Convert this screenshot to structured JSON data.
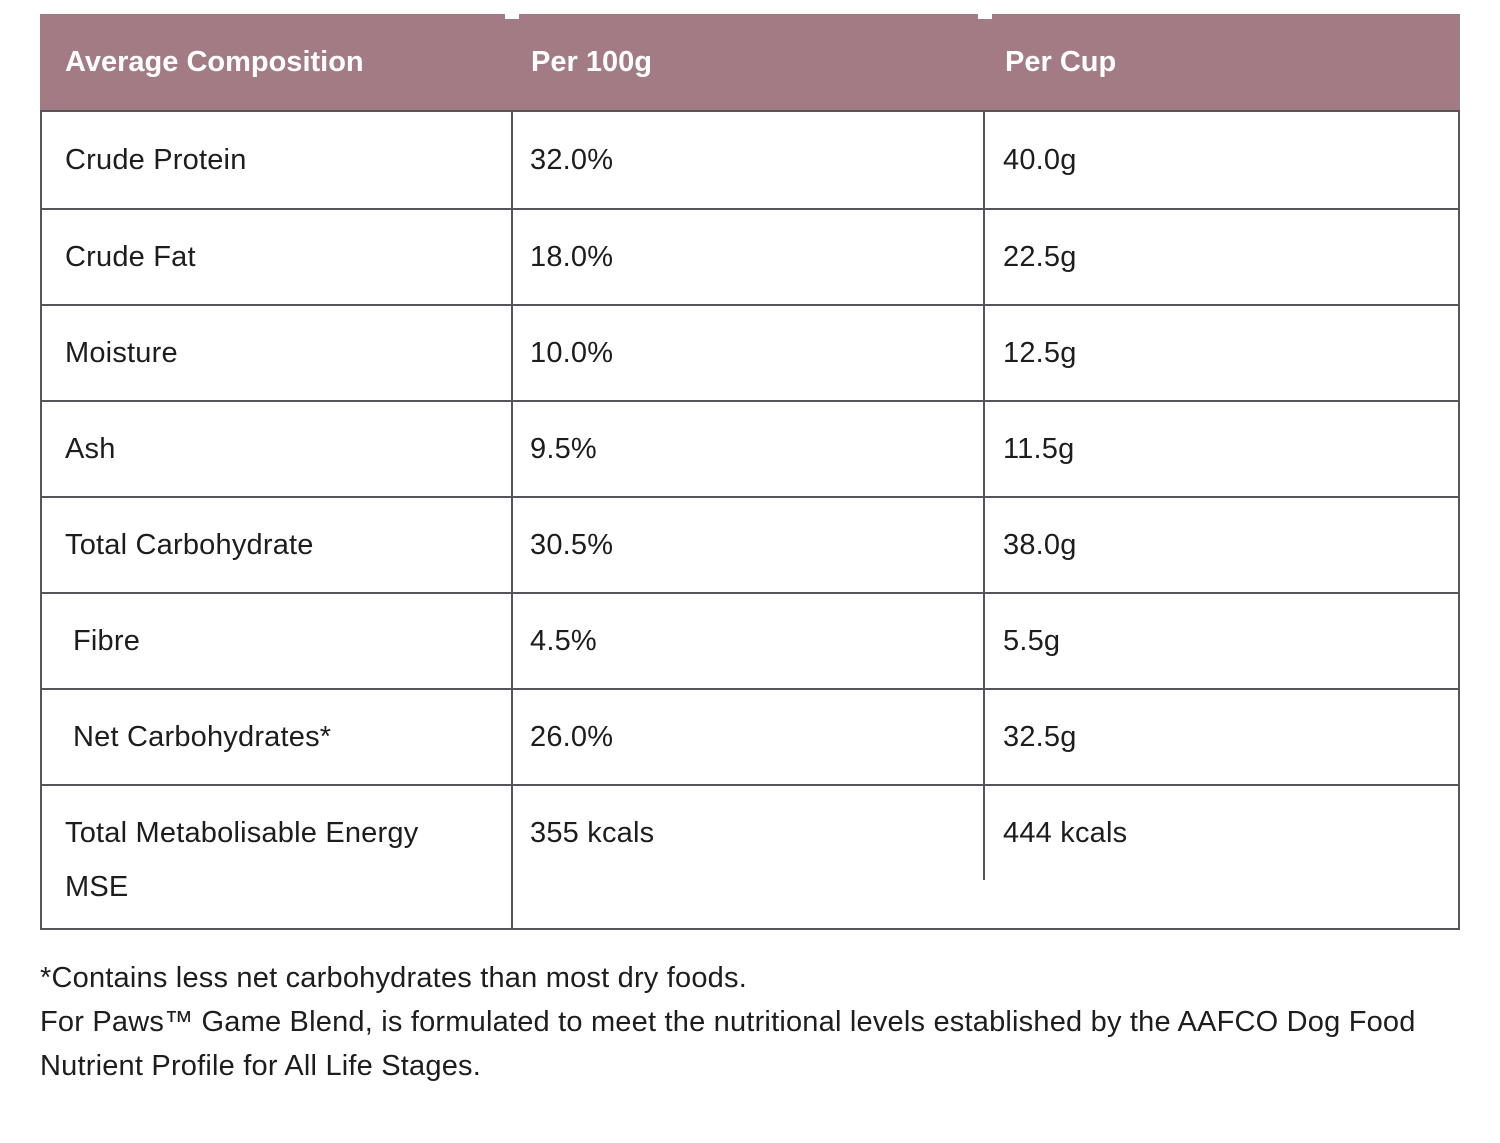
{
  "colors": {
    "background": "#ffffff",
    "header_bg": "#a37b84",
    "header_text": "#ffffff",
    "grid_border": "#55565a",
    "body_text": "#1d1d1d"
  },
  "table": {
    "header": {
      "columns": [
        "Average Composition",
        "Per 100g",
        "Per Cup"
      ]
    },
    "rows": [
      {
        "label": "Crude Protein",
        "per_100g": "32.0%",
        "per_cup": "40.0g"
      },
      {
        "label": "Crude Fat",
        "per_100g": "18.0%",
        "per_cup": "22.5g"
      },
      {
        "label": "Moisture",
        "per_100g": "10.0%",
        "per_cup": "12.5g"
      },
      {
        "label": "Ash",
        "per_100g": "9.5%",
        "per_cup": "11.5g"
      },
      {
        "label": "Total Carbohydrate",
        "per_100g": "30.5%",
        "per_cup": "38.0g"
      },
      {
        "label": "Fibre",
        "per_100g": "4.5%",
        "per_cup": "5.5g"
      },
      {
        "label": "Net Carbohydrates*",
        "per_100g": "26.0%",
        "per_cup": "32.5g"
      },
      {
        "label": "Total Metabolisable Energy",
        "label_line2": "MSE",
        "per_100g": "355 kcals",
        "per_cup": "444 kcals"
      }
    ]
  },
  "footnotes": {
    "line1": "*Contains less net carbohydrates than most dry foods.",
    "line2": "For Paws™ Game Blend, is formulated to meet the nutritional levels established by the AAFCO Dog Food Nutrient Profile for All Life Stages."
  }
}
